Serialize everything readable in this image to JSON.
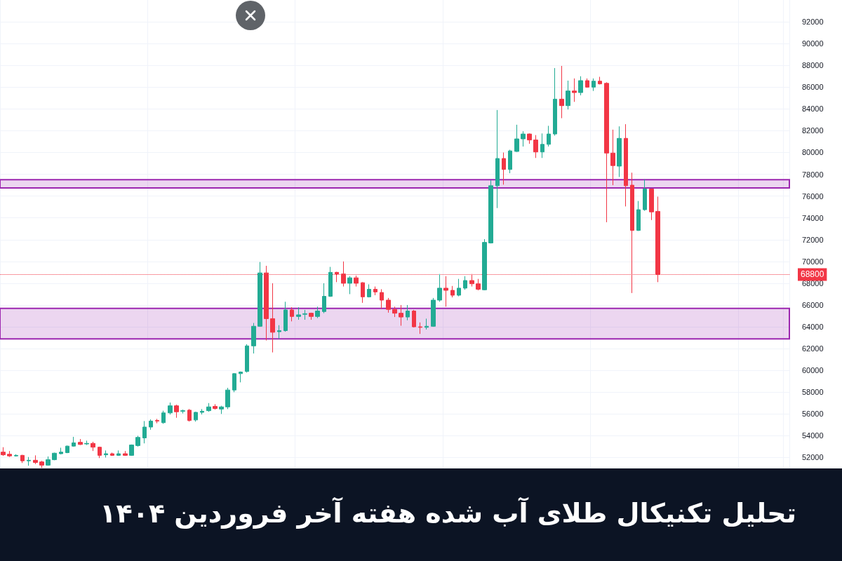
{
  "chart_data": {
    "type": "candlestick",
    "title": "تحلیل تکنیکال طلای آب شده هفته آخر فروردین ۱۴۰۴",
    "categories": [
      null,
      null,
      null,
      null,
      null,
      null,
      null,
      null,
      null,
      null,
      null,
      null,
      null,
      null,
      null,
      null,
      null,
      null,
      null,
      null,
      null,
      null,
      null,
      null,
      null,
      null,
      null,
      null,
      null,
      null,
      null,
      null,
      null,
      null,
      null,
      null,
      null,
      null,
      null,
      null,
      null,
      null,
      null,
      null,
      null,
      null,
      null,
      null,
      null,
      null,
      null,
      null,
      null,
      null,
      null,
      null,
      null,
      null,
      null,
      null,
      null,
      null,
      null,
      null,
      null,
      null,
      null,
      null,
      null,
      null,
      null,
      null,
      null,
      null,
      null,
      null,
      null,
      null,
      null,
      null,
      null,
      null,
      null,
      null,
      null,
      null,
      null,
      null,
      null,
      null,
      null,
      null,
      null,
      null,
      null,
      null,
      null,
      null,
      null,
      null,
      null,
      null,
      null,
      null,
      null,
      null,
      null,
      null,
      null,
      null,
      null,
      null,
      null,
      null,
      null,
      null,
      null,
      null,
      null,
      null,
      null,
      null,
      null
    ],
    "ohlc": [
      [
        52500,
        52950,
        52150,
        52250
      ],
      [
        52300,
        52600,
        52050,
        52150
      ],
      [
        52150,
        52300,
        52100,
        52200
      ],
      [
        52200,
        52250,
        51500,
        51700
      ],
      [
        51700,
        52050,
        51250,
        51750
      ],
      [
        51750,
        52200,
        51400,
        51550
      ],
      [
        51600,
        51700,
        51050,
        51300
      ],
      [
        51300,
        52100,
        51250,
        51800
      ],
      [
        51800,
        52450,
        51750,
        52400
      ],
      [
        52350,
        52900,
        52300,
        52500
      ],
      [
        52450,
        53100,
        52400,
        53050
      ],
      [
        53050,
        53900,
        53000,
        53350
      ],
      [
        53400,
        53700,
        53150,
        53200
      ],
      [
        53250,
        53550,
        53150,
        53300
      ],
      [
        53300,
        53450,
        52600,
        52950
      ],
      [
        52950,
        53000,
        51950,
        52200
      ],
      [
        52250,
        52650,
        52000,
        52350
      ],
      [
        52350,
        52450,
        52150,
        52200
      ],
      [
        52200,
        52650,
        52150,
        52350
      ],
      [
        52350,
        52600,
        52150,
        52200
      ],
      [
        52200,
        53200,
        52150,
        53150
      ],
      [
        53100,
        54000,
        53000,
        53850
      ],
      [
        53800,
        55350,
        53300,
        54800
      ],
      [
        54800,
        55500,
        54550,
        55350
      ],
      [
        55400,
        55550,
        55150,
        55350
      ],
      [
        55200,
        56300,
        55100,
        56100
      ],
      [
        56100,
        57050,
        55950,
        56750
      ],
      [
        56750,
        56850,
        55650,
        56200
      ],
      [
        56250,
        56400,
        56050,
        56300
      ],
      [
        56350,
        56450,
        55300,
        55400
      ],
      [
        55450,
        56200,
        55300,
        56150
      ],
      [
        56150,
        56450,
        55950,
        56250
      ],
      [
        56300,
        57000,
        56200,
        56650
      ],
      [
        56700,
        56900,
        56400,
        56500
      ],
      [
        56450,
        56750,
        56000,
        56650
      ],
      [
        56650,
        58400,
        56450,
        58200
      ],
      [
        58200,
        59750,
        58000,
        59700
      ],
      [
        59700,
        59900,
        58900,
        59850
      ],
      [
        59900,
        62400,
        59800,
        62250
      ],
      [
        62250,
        64350,
        61550,
        64050
      ],
      [
        64050,
        69950,
        64000,
        68950
      ],
      [
        68950,
        69600,
        62750,
        64750
      ],
      [
        64750,
        68000,
        61650,
        63500
      ],
      [
        63550,
        64150,
        62900,
        63650
      ],
      [
        63650,
        66300,
        63550,
        65550
      ],
      [
        65550,
        65800,
        64500,
        64950
      ],
      [
        64950,
        65800,
        64650,
        65100
      ],
      [
        65150,
        65550,
        64650,
        65200
      ],
      [
        65250,
        65300,
        64650,
        64950
      ],
      [
        64950,
        65850,
        64800,
        65450
      ],
      [
        65400,
        68000,
        65250,
        66800
      ],
      [
        66800,
        69500,
        66750,
        69000
      ],
      [
        69000,
        69050,
        68100,
        68850
      ],
      [
        68850,
        70000,
        67700,
        68000
      ],
      [
        68000,
        68650,
        67000,
        68500
      ],
      [
        68500,
        68700,
        67700,
        68000
      ],
      [
        68050,
        68100,
        66200,
        66750
      ],
      [
        66750,
        67900,
        66700,
        67450
      ],
      [
        67450,
        67700,
        66900,
        67200
      ],
      [
        67150,
        67450,
        65650,
        66450
      ],
      [
        66450,
        66650,
        65300,
        65600
      ],
      [
        65600,
        65850,
        64900,
        65250
      ],
      [
        65250,
        66000,
        64100,
        64900
      ],
      [
        64900,
        66000,
        64600,
        65450
      ],
      [
        65450,
        65550,
        63950,
        64000
      ],
      [
        64000,
        64400,
        63350,
        63950
      ],
      [
        63950,
        64750,
        63750,
        64050
      ],
      [
        64050,
        66650,
        64000,
        66450
      ],
      [
        66450,
        68850,
        66300,
        67550
      ],
      [
        67550,
        68650,
        65850,
        67350
      ],
      [
        67350,
        67750,
        66700,
        66900
      ],
      [
        66900,
        68400,
        66800,
        67550
      ],
      [
        67550,
        68650,
        67400,
        68250
      ],
      [
        68250,
        68850,
        67700,
        67950
      ],
      [
        67950,
        68400,
        67350,
        67450
      ],
      [
        67400,
        72050,
        67350,
        71750
      ],
      [
        71700,
        77450,
        71650,
        76950
      ],
      [
        76950,
        83900,
        74900,
        79450
      ],
      [
        79450,
        80000,
        77050,
        78450
      ],
      [
        78450,
        80250,
        78100,
        80150
      ],
      [
        80100,
        82550,
        80050,
        81250
      ],
      [
        81250,
        81950,
        80550,
        81700
      ],
      [
        81700,
        81750,
        80800,
        81150
      ],
      [
        81150,
        81600,
        79500,
        80050
      ],
      [
        80050,
        81750,
        79500,
        80750
      ],
      [
        80750,
        82450,
        80550,
        81700
      ],
      [
        81700,
        87750,
        81550,
        84900
      ],
      [
        84900,
        87950,
        83150,
        84300
      ],
      [
        84300,
        86600,
        83950,
        85650
      ],
      [
        85650,
        86800,
        84650,
        85500
      ],
      [
        85500,
        87000,
        85250,
        86600
      ],
      [
        86600,
        86800,
        85950,
        86000
      ],
      [
        86000,
        86800,
        85650,
        86550
      ],
      [
        86550,
        86950,
        86250,
        86300
      ],
      [
        86350,
        86450,
        73600,
        79950
      ],
      [
        79950,
        82100,
        77000,
        78800
      ],
      [
        78750,
        82400,
        77750,
        81300
      ],
      [
        81300,
        82600,
        75050,
        76950
      ],
      [
        77000,
        78150,
        67100,
        72850
      ],
      [
        72850,
        75550,
        72800,
        74750
      ],
      [
        74750,
        77550,
        74650,
        76650
      ],
      [
        76650,
        76700,
        73800,
        74550
      ],
      [
        74600,
        75950,
        68100,
        68800
      ],
      null,
      null,
      null,
      null,
      null,
      null,
      null,
      null,
      null,
      null,
      null,
      null,
      null,
      null,
      null,
      null,
      null,
      null,
      null,
      null
    ],
    "colors": [
      "#f23645",
      "#f23645",
      "#22ab94",
      "#f23645",
      "#22ab94",
      "#f23645",
      "#f23645",
      "#22ab94",
      "#22ab94",
      "#22ab94",
      "#22ab94",
      "#22ab94",
      "#f23645",
      "#22ab94",
      "#f23645",
      "#f23645",
      "#22ab94",
      "#f23645",
      "#22ab94",
      "#f23645",
      "#22ab94",
      "#22ab94",
      "#22ab94",
      "#22ab94",
      "#f23645",
      "#22ab94",
      "#22ab94",
      "#f23645",
      "#22ab94",
      "#f23645",
      "#22ab94",
      "#22ab94",
      "#22ab94",
      "#f23645",
      "#22ab94",
      "#22ab94",
      "#22ab94",
      "#22ab94",
      "#22ab94",
      "#22ab94",
      "#22ab94",
      "#f23645",
      "#f23645",
      "#22ab94",
      "#22ab94",
      "#f23645",
      "#22ab94",
      "#22ab94",
      "#f23645",
      "#22ab94",
      "#22ab94",
      "#22ab94",
      "#f23645",
      "#f23645",
      "#22ab94",
      "#f23645",
      "#f23645",
      "#22ab94",
      "#f23645",
      "#f23645",
      "#f23645",
      "#f23645",
      "#f23645",
      "#22ab94",
      "#f23645",
      "#f23645",
      "#22ab94",
      "#22ab94",
      "#22ab94",
      "#f23645",
      "#f23645",
      "#22ab94",
      "#22ab94",
      "#f23645",
      "#f23645",
      "#22ab94",
      "#22ab94",
      "#22ab94",
      "#f23645",
      "#22ab94",
      "#22ab94",
      "#22ab94",
      "#f23645",
      "#f23645",
      "#22ab94",
      "#22ab94",
      "#22ab94",
      "#f23645",
      "#22ab94",
      "#f23645",
      "#22ab94",
      "#f23645",
      "#22ab94",
      "#f23645",
      "#f23645",
      "#f23645",
      "#22ab94",
      "#f23645",
      "#f23645",
      "#22ab94",
      "#22ab94",
      "#f23645",
      "#f23645",
      null,
      null,
      null,
      null,
      null,
      null,
      null,
      null,
      null,
      null,
      null,
      null,
      null,
      null,
      null,
      null,
      null,
      null,
      null,
      null
    ],
    "ylim": [
      51000,
      94000
    ],
    "yticks": [
      52000,
      54000,
      56000,
      58000,
      60000,
      62000,
      64000,
      66000,
      68000,
      70000,
      72000,
      74000,
      76000,
      78000,
      80000,
      82000,
      84000,
      86000,
      88000,
      90000,
      92000
    ],
    "grid": true,
    "tick_labels": "y",
    "ref_lines": [
      {
        "axis": "y",
        "value": 68800,
        "label": "68800",
        "color": "#f23645",
        "line_style": "dotted"
      }
    ],
    "bands": [
      {
        "axis": "y",
        "from": 62900,
        "to": 65700,
        "color": "#9c27b0"
      },
      {
        "axis": "y",
        "from": 76750,
        "to": 77500,
        "color": "#9c27b0"
      }
    ]
  }
}
